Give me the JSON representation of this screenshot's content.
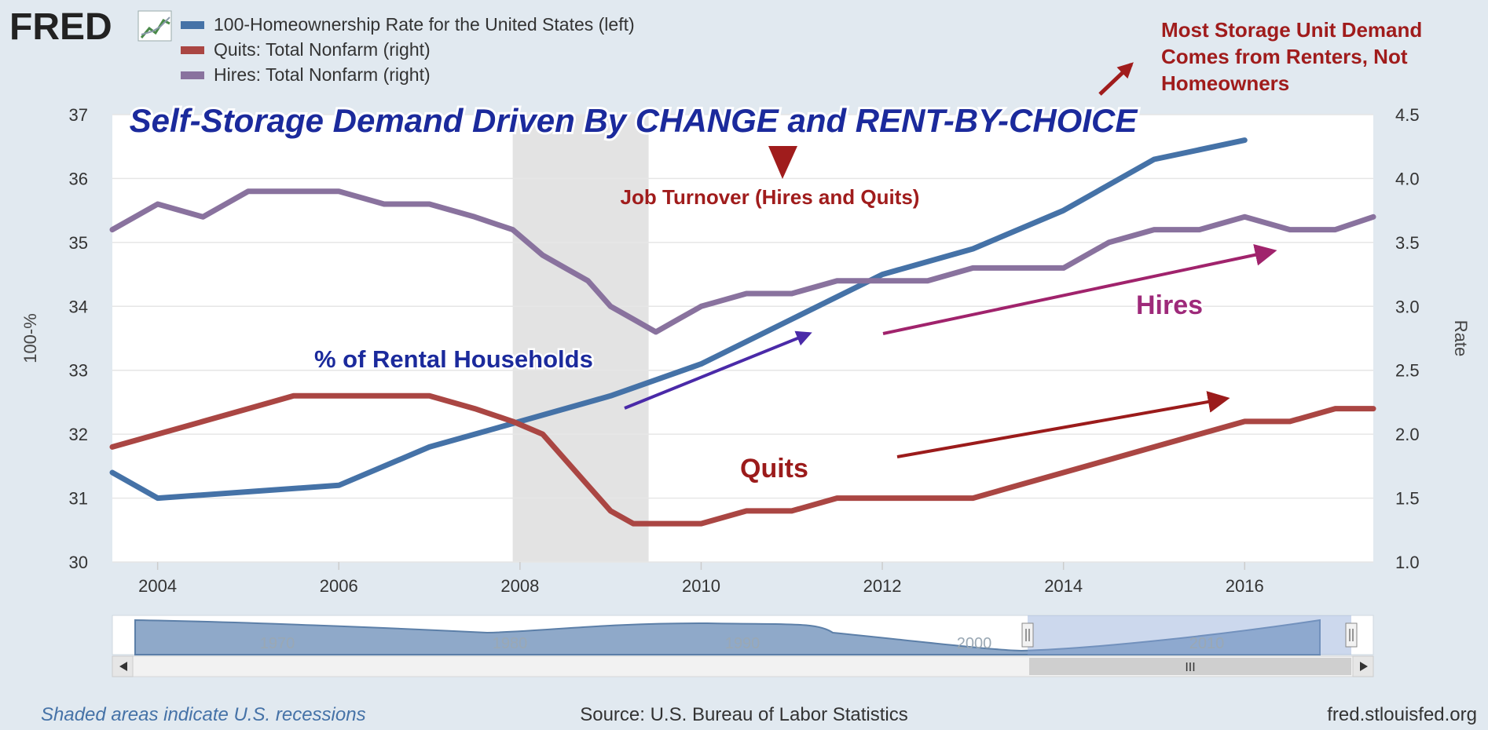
{
  "logo": {
    "text": "FRED"
  },
  "legend": [
    {
      "label": "100-Homeownership Rate for the United States (left)",
      "color": "#4572a7"
    },
    {
      "label": "Quits: Total Nonfarm (right)",
      "color": "#aa4643"
    },
    {
      "label": "Hires: Total Nonfarm (right)",
      "color": "#89729e"
    }
  ],
  "annotations": {
    "title": "Self-Storage Demand Driven By CHANGE and RENT-BY-CHOICE",
    "job_turnover": "Job Turnover (Hires and Quits)",
    "storage_demand": [
      "Most Storage Unit Demand",
      "Comes from Renters, Not",
      "Homeowners"
    ],
    "rental": "% of Rental Households",
    "hires": "Hires",
    "quits": "Quits"
  },
  "footer": {
    "recessions": "Shaded areas indicate U.S. recessions",
    "source": "Source: U.S. Bureau of Labor Statistics",
    "site": "fred.stlouisfed.org"
  },
  "navigator": {
    "labels": [
      "1970",
      "1980",
      "1990",
      "2000",
      "2010"
    ],
    "scroll_grip": "III"
  },
  "chart_data": {
    "type": "line",
    "xlim": [
      2003.5,
      2017.42
    ],
    "x_ticks": [
      "2004",
      "2006",
      "2008",
      "2010",
      "2012",
      "2014",
      "2016"
    ],
    "y_left": {
      "label": "100-%",
      "lim": [
        30,
        37
      ],
      "ticks": [
        "30",
        "31",
        "32",
        "33",
        "34",
        "35",
        "36",
        "37"
      ]
    },
    "y_right": {
      "label": "Rate",
      "lim": [
        1.0,
        4.5
      ],
      "ticks": [
        "1.0",
        "1.5",
        "2.0",
        "2.5",
        "3.0",
        "3.5",
        "4.0",
        "4.5"
      ]
    },
    "recession": [
      2007.92,
      2009.42
    ],
    "grid": true,
    "series": [
      {
        "name": "100-Homeownership Rate for the United States (left)",
        "axis": "left",
        "color": "#4572a7",
        "x": [
          2003.5,
          2004.0,
          2006.0,
          2007.0,
          2008.0,
          2009.0,
          2010.0,
          2011.0,
          2012.0,
          2013.0,
          2014.0,
          2015.0,
          2016.0
        ],
        "y": [
          31.4,
          31.0,
          31.2,
          31.8,
          32.2,
          32.6,
          33.1,
          33.8,
          34.5,
          34.9,
          35.5,
          36.3,
          36.6
        ]
      },
      {
        "name": "Hires: Total Nonfarm (right)",
        "axis": "right",
        "color": "#89729e",
        "x": [
          2003.5,
          2004.0,
          2004.5,
          2005.0,
          2005.5,
          2006.0,
          2006.5,
          2007.0,
          2007.5,
          2007.92,
          2008.25,
          2008.5,
          2008.75,
          2009.0,
          2009.25,
          2009.5,
          2009.75,
          2010.0,
          2010.5,
          2011.0,
          2011.5,
          2012.0,
          2012.5,
          2013.0,
          2013.5,
          2014.0,
          2014.5,
          2015.0,
          2015.5,
          2016.0,
          2016.5,
          2017.0,
          2017.42
        ],
        "y": [
          3.6,
          3.8,
          3.7,
          3.9,
          3.9,
          3.9,
          3.8,
          3.8,
          3.7,
          3.6,
          3.4,
          3.3,
          3.2,
          3.0,
          2.9,
          2.8,
          2.9,
          3.0,
          3.1,
          3.1,
          3.2,
          3.2,
          3.2,
          3.3,
          3.3,
          3.3,
          3.5,
          3.6,
          3.6,
          3.7,
          3.6,
          3.6,
          3.7
        ]
      },
      {
        "name": "Quits: Total Nonfarm (right)",
        "axis": "right",
        "color": "#aa4643",
        "x": [
          2003.5,
          2004.0,
          2004.5,
          2005.0,
          2005.5,
          2006.0,
          2006.5,
          2007.0,
          2007.5,
          2007.92,
          2008.25,
          2008.5,
          2008.75,
          2009.0,
          2009.25,
          2009.5,
          2009.75,
          2010.0,
          2010.5,
          2011.0,
          2011.5,
          2012.0,
          2012.5,
          2013.0,
          2013.5,
          2014.0,
          2014.5,
          2015.0,
          2015.5,
          2016.0,
          2016.5,
          2017.0,
          2017.42
        ],
        "y": [
          1.9,
          2.0,
          2.1,
          2.2,
          2.3,
          2.3,
          2.3,
          2.3,
          2.2,
          2.1,
          2.0,
          1.8,
          1.6,
          1.4,
          1.3,
          1.3,
          1.3,
          1.3,
          1.4,
          1.4,
          1.5,
          1.5,
          1.5,
          1.5,
          1.6,
          1.7,
          1.8,
          1.9,
          2.0,
          2.1,
          2.1,
          2.2,
          2.2
        ]
      }
    ]
  }
}
